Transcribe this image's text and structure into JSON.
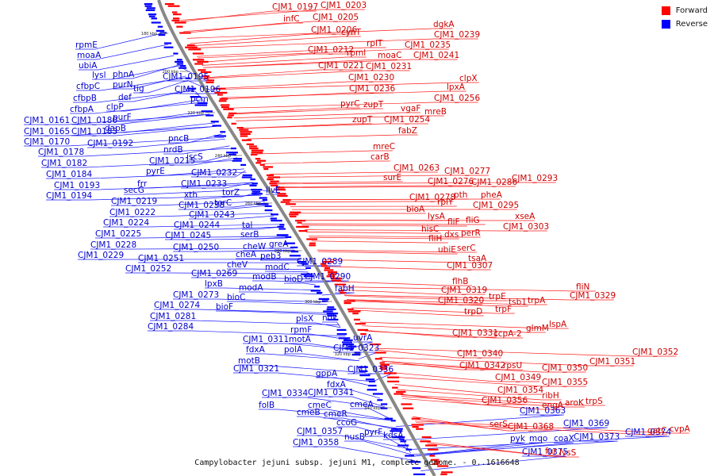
{
  "legend": [
    {
      "label": "Forward",
      "color": "#ff0000"
    },
    {
      "label": "Reverse",
      "color": "#0000ff"
    }
  ],
  "caption": "Campylobacter jejuni subsp. jejuni M1, complete genome. - 0..1616648",
  "ticks": [
    "180 kbp",
    "200 kbp",
    "220 kbp",
    "240 kbp",
    "260 kbp",
    "280 kbp",
    "300 kbp",
    "320 kbp",
    "340 kbp"
  ],
  "reverse_labels": [
    [
      "rpmE",
      95,
      60
    ],
    [
      "moaA",
      97,
      73
    ],
    [
      "ubiA",
      99,
      86
    ],
    [
      "lysl",
      116,
      98
    ],
    [
      "phnA",
      142,
      97
    ],
    [
      "cfbpC",
      96,
      112
    ],
    [
      "purN",
      142,
      110
    ],
    [
      "CJM1_0195",
      205,
      100
    ],
    [
      "tig",
      168,
      115
    ],
    [
      "CJM1_0196",
      220,
      116
    ],
    [
      "cfbpB",
      92,
      127
    ],
    [
      "def",
      149,
      126
    ],
    [
      "pcm",
      240,
      128
    ],
    [
      "cfbpA",
      88,
      141
    ],
    [
      "clpP",
      134,
      138
    ],
    [
      "CJM1_0161",
      30,
      155
    ],
    [
      "CJM1_0180",
      90,
      155
    ],
    [
      "purF",
      142,
      151
    ],
    [
      "dapB",
      132,
      165
    ],
    [
      "CJM1_0165",
      30,
      169
    ],
    [
      "CJM1_0183",
      90,
      169
    ],
    [
      "CJM1_0170",
      30,
      182
    ],
    [
      "CJM1_0192",
      110,
      184
    ],
    [
      "pncB",
      212,
      178
    ],
    [
      "CJM1_0178",
      48,
      195
    ],
    [
      "nrdB",
      206,
      192
    ],
    [
      "CJM1_0182",
      52,
      209
    ],
    [
      "CJM1_0215",
      188,
      206
    ],
    [
      "iscS",
      235,
      201
    ],
    [
      "CJM1_0184",
      58,
      223
    ],
    [
      "pyrE",
      184,
      219
    ],
    [
      "CJM1_0232",
      241,
      221
    ],
    [
      "CJM1_0193",
      68,
      237
    ],
    [
      "frr",
      173,
      235
    ],
    [
      "CJM1_0233",
      228,
      235
    ],
    [
      "CJM1_0194",
      58,
      250
    ],
    [
      "secG",
      156,
      243
    ],
    [
      "xth",
      232,
      249
    ],
    [
      "torZ",
      280,
      246
    ],
    [
      "ilvE",
      335,
      243
    ],
    [
      "CJM1_0219",
      140,
      257
    ],
    [
      "CJM1_0238",
      225,
      262
    ],
    [
      "torC",
      270,
      259
    ],
    [
      "CJM1_0222",
      138,
      271
    ],
    [
      "CJM1_0243",
      238,
      274
    ],
    [
      "CJM1_0224",
      130,
      284
    ],
    [
      "CJM1_0244",
      219,
      287
    ],
    [
      "tal",
      305,
      287
    ],
    [
      "CJM1_0225",
      120,
      298
    ],
    [
      "CJM1_0245",
      208,
      300
    ],
    [
      "serB",
      303,
      299
    ],
    [
      "CJM1_0228",
      114,
      312
    ],
    [
      "CJM1_0250",
      218,
      315
    ],
    [
      "cheW",
      306,
      314
    ],
    [
      "greA",
      339,
      311
    ],
    [
      "CJM1_0229",
      98,
      325
    ],
    [
      "cheA",
      297,
      324
    ],
    [
      "peb3",
      328,
      326
    ],
    [
      "CJM1_0251",
      174,
      329
    ],
    [
      "cheV",
      286,
      337
    ],
    [
      "CJM1_0289",
      374,
      333
    ],
    [
      "CJM1_0252",
      158,
      342
    ],
    [
      "modC",
      334,
      340
    ],
    [
      "CJM1_0269",
      241,
      348
    ],
    [
      "modB",
      318,
      352
    ],
    [
      "bioD",
      358,
      355
    ],
    [
      "CJM1_0290",
      384,
      352
    ],
    [
      "lpxB",
      258,
      361
    ],
    [
      "modA",
      301,
      366
    ],
    [
      "fabH",
      422,
      367
    ],
    [
      "CJM1_0273",
      218,
      375
    ],
    [
      "bioC",
      286,
      378
    ],
    [
      "CJM1_0274",
      194,
      388
    ],
    [
      "bioF",
      272,
      390
    ],
    [
      "CJM1_0281",
      189,
      402
    ],
    [
      "CJM1_0284",
      186,
      415
    ],
    [
      "plsX",
      373,
      405
    ],
    [
      "ndk",
      406,
      404
    ],
    [
      "rpmF",
      366,
      419
    ],
    [
      "CJM1_0311",
      306,
      431
    ],
    [
      "motA",
      364,
      431
    ],
    [
      "uvrA",
      445,
      429
    ],
    [
      "fdxA",
      310,
      444
    ],
    [
      "polA",
      358,
      444
    ],
    [
      "CJM1_0323",
      420,
      442
    ],
    [
      "motB",
      300,
      458
    ],
    [
      "CJM1_0321",
      294,
      468
    ],
    [
      "gppA",
      398,
      474
    ],
    [
      "CJM1_0336",
      438,
      469
    ],
    [
      "fdxA",
      412,
      488
    ],
    [
      "CJM1_0334",
      330,
      499
    ],
    [
      "CJM1_0341",
      388,
      498
    ],
    [
      "folB",
      326,
      514
    ],
    [
      "cmeC",
      388,
      514
    ],
    [
      "cmeA",
      441,
      513
    ],
    [
      "cmeB",
      374,
      523
    ],
    [
      "cmeR",
      408,
      525
    ],
    [
      "ccoG",
      424,
      536
    ],
    [
      "CJM1_0357",
      374,
      547
    ],
    [
      "pyrF",
      459,
      548
    ],
    [
      "nusB",
      434,
      554
    ],
    [
      "CJM1_0358",
      369,
      561
    ],
    [
      "kdsA",
      483,
      552
    ],
    [
      "CJM1_0363",
      655,
      521
    ],
    [
      "CJM1_0369",
      710,
      537
    ],
    [
      "pyk",
      643,
      556
    ],
    [
      "mqo",
      667,
      556
    ],
    [
      "coaX",
      698,
      556
    ],
    [
      "CJM1_0373",
      723,
      554
    ],
    [
      "CJM1_0374",
      788,
      548
    ],
    [
      "CJM1_0375",
      658,
      573
    ]
  ],
  "forward_labels": [
    [
      "CJM1_0197",
      343,
      12
    ],
    [
      "CJM1_0203",
      404,
      10
    ],
    [
      "infC",
      357,
      27
    ],
    [
      "CJM1_0205",
      394,
      25
    ],
    [
      "CJM1_0206",
      392,
      41
    ],
    [
      "cynT",
      430,
      44
    ],
    [
      "dgkA",
      546,
      34
    ],
    [
      "CJM1_0239",
      547,
      47
    ],
    [
      "rplT",
      462,
      58
    ],
    [
      "CJM1_0235",
      510,
      60
    ],
    [
      "CJM1_0212",
      388,
      66
    ],
    [
      "rpml",
      437,
      70
    ],
    [
      "moaC",
      476,
      73
    ],
    [
      "CJM1_0241",
      521,
      73
    ],
    [
      "CJM1_0221",
      401,
      86
    ],
    [
      "CJM1_0231",
      461,
      87
    ],
    [
      "clpX",
      579,
      102
    ],
    [
      "CJM1_0230",
      439,
      101
    ],
    [
      "lpxA",
      563,
      113
    ],
    [
      "CJM1_0236",
      440,
      115
    ],
    [
      "CJM1_0256",
      547,
      127
    ],
    [
      "pyrC",
      429,
      134
    ],
    [
      "zupT",
      458,
      135
    ],
    [
      "mreB",
      535,
      144
    ],
    [
      "vgaF",
      505,
      140
    ],
    [
      "CJM1_0254",
      484,
      154
    ],
    [
      "zupT",
      444,
      154
    ],
    [
      "fabZ",
      502,
      168
    ],
    [
      "mreC",
      470,
      188
    ],
    [
      "carB",
      467,
      201
    ],
    [
      "CJM1_0263",
      496,
      215
    ],
    [
      "CJM1_0277",
      560,
      219
    ],
    [
      "surE",
      483,
      227
    ],
    [
      "CJM1_0276",
      539,
      232
    ],
    [
      "CJM1_0286",
      594,
      233
    ],
    [
      "CJM1_0293",
      645,
      228
    ],
    [
      "CJM1_0278",
      516,
      252
    ],
    [
      "pth",
      572,
      249
    ],
    [
      "pheA",
      606,
      249
    ],
    [
      "rplY",
      551,
      258
    ],
    [
      "CJM1_0295",
      596,
      262
    ],
    [
      "bioA",
      512,
      267
    ],
    [
      "lysA",
      539,
      276
    ],
    [
      "xseA",
      649,
      276
    ],
    [
      "fliF",
      564,
      283
    ],
    [
      "fliG",
      587,
      281
    ],
    [
      "hisC",
      531,
      292
    ],
    [
      "CJM1_0303",
      634,
      289
    ],
    [
      "dxs",
      560,
      299
    ],
    [
      "perR",
      581,
      297
    ],
    [
      "fliH",
      540,
      304
    ],
    [
      "ubiE",
      552,
      318
    ],
    [
      "serC",
      576,
      316
    ],
    [
      "tsaA",
      590,
      329
    ],
    [
      "CJM1_0307",
      563,
      338
    ],
    [
      "flhB",
      570,
      358
    ],
    [
      "fliN",
      726,
      365
    ],
    [
      "CJM1_0319",
      556,
      369
    ],
    [
      "trpE",
      616,
      377
    ],
    [
      "tsb1",
      641,
      384
    ],
    [
      "trpA",
      665,
      382
    ],
    [
      "CJM1_0329",
      718,
      376
    ],
    [
      "CJM1_0320",
      552,
      382
    ],
    [
      "trpF",
      624,
      393
    ],
    [
      "trpD",
      585,
      396
    ],
    [
      "lspA",
      692,
      412
    ],
    [
      "glmM",
      663,
      417
    ],
    [
      "CJM1_0331",
      570,
      423
    ],
    [
      "ccpA-2",
      622,
      424
    ],
    [
      "CJM1_0340",
      576,
      449
    ],
    [
      "CJM1_0352",
      797,
      447
    ],
    [
      "CJM1_0351",
      743,
      459
    ],
    [
      "CJM1_0342",
      579,
      464
    ],
    [
      "rpsU",
      634,
      464
    ],
    [
      "CJM1_0350",
      683,
      467
    ],
    [
      "CJM1_0349",
      624,
      479
    ],
    [
      "CJM1_0355",
      683,
      485
    ],
    [
      "CJM1_0354",
      627,
      495
    ],
    [
      "ribH",
      683,
      502
    ],
    [
      "CJM1_0356",
      607,
      508
    ],
    [
      "engA",
      683,
      514
    ],
    [
      "aroK",
      712,
      511
    ],
    [
      "trpS",
      738,
      509
    ],
    [
      "serS",
      617,
      538
    ],
    [
      "CJM1_0368",
      640,
      541
    ],
    [
      "gatC",
      816,
      546
    ],
    [
      "cvpA",
      844,
      544
    ],
    [
      "fur",
      687,
      572
    ],
    [
      "lysS",
      705,
      574
    ]
  ]
}
